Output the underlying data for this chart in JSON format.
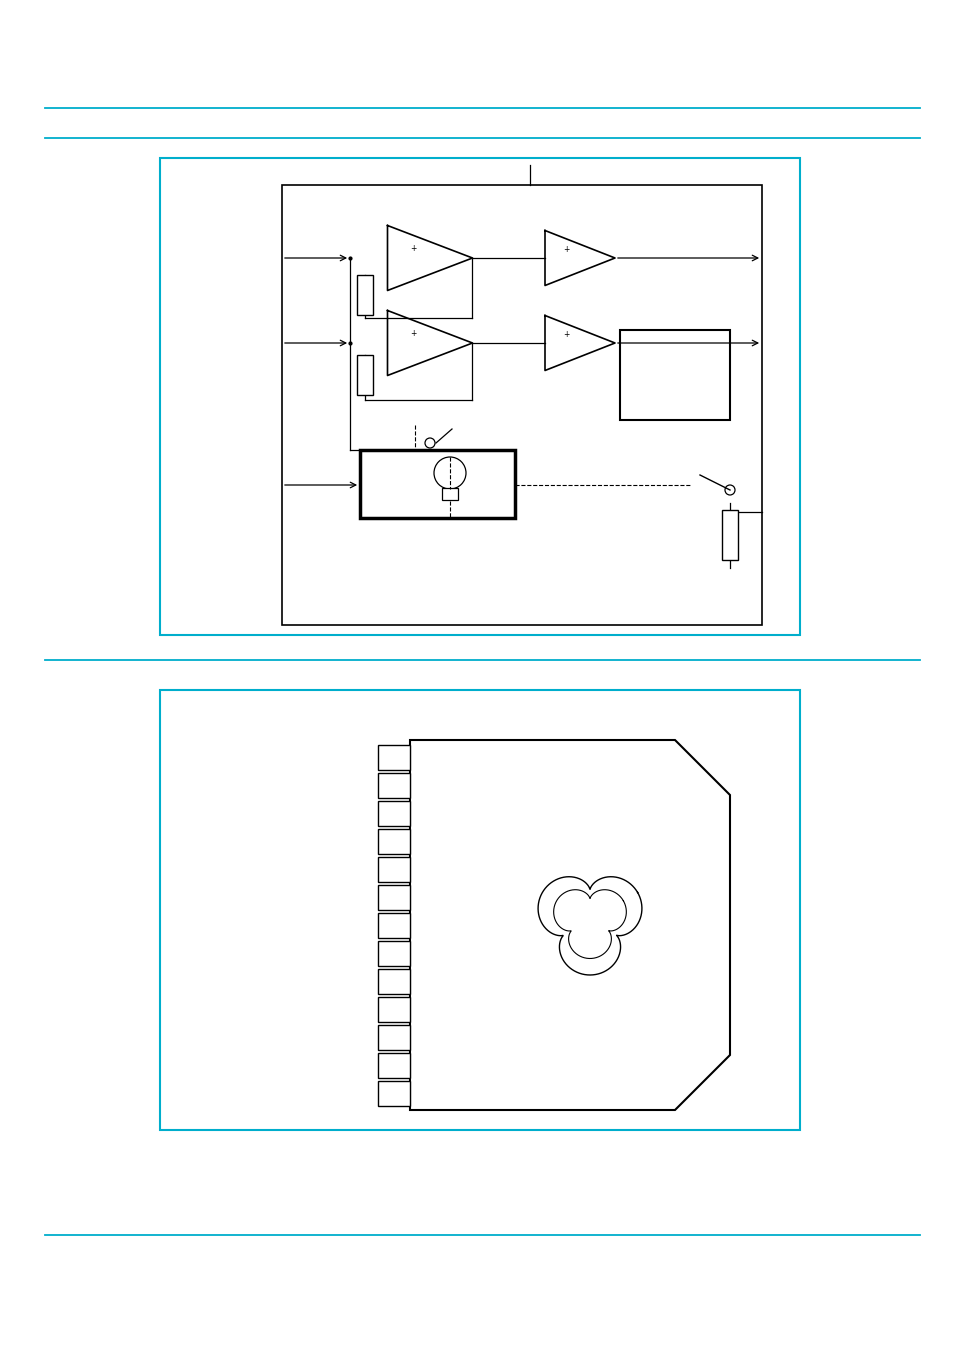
{
  "bg_color": "#ffffff",
  "cyan_color": "#00AECC",
  "black_color": "#000000",
  "page_width": 9.54,
  "page_height": 13.51
}
